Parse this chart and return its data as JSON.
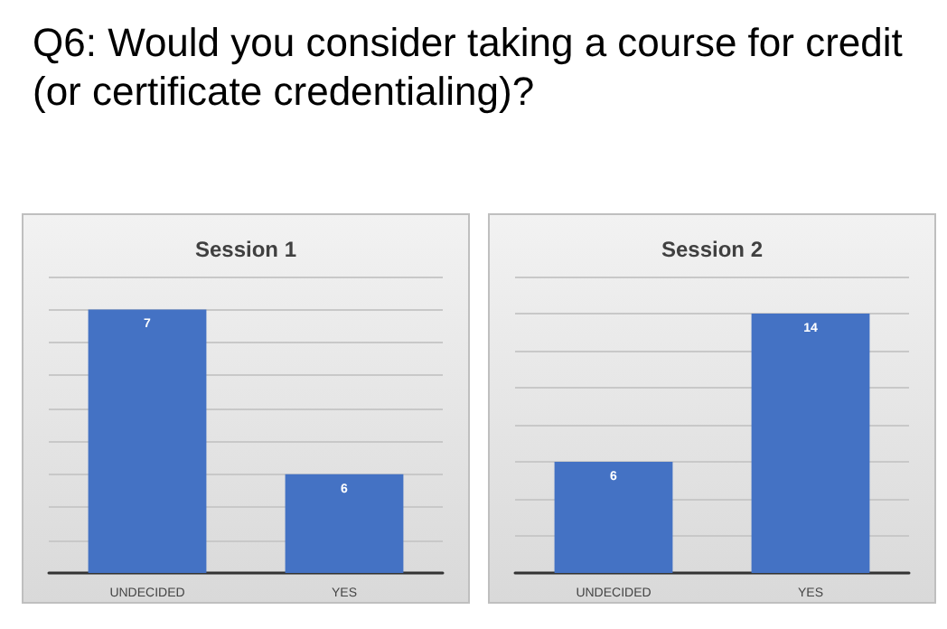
{
  "chart_data": [
    {
      "type": "bar",
      "title": "Q6: Would you consider taking a course for credit (or certificate credentialing)?",
      "subtitle": "Session 1",
      "categories": [
        "UNDECIDED",
        "YES"
      ],
      "values": [
        7,
        6
      ],
      "color": "#4472c4",
      "ylim": [
        5.4,
        7.2
      ],
      "yticks": [
        5.4,
        5.6,
        5.8,
        6,
        6.2,
        6.4,
        6.6,
        6.8,
        7,
        7.2
      ],
      "grid": "y",
      "tick_labels": "x",
      "data_labels": true
    },
    {
      "type": "bar",
      "subtitle": "Session 2",
      "categories": [
        "UNDECIDED",
        "YES"
      ],
      "values": [
        6,
        14
      ],
      "color": "#4472c4",
      "ylim": [
        0,
        16
      ],
      "yticks": [
        0,
        2,
        4,
        6,
        8,
        10,
        12,
        14,
        16
      ],
      "grid": "y",
      "tick_labels": "x",
      "data_labels": true
    }
  ]
}
